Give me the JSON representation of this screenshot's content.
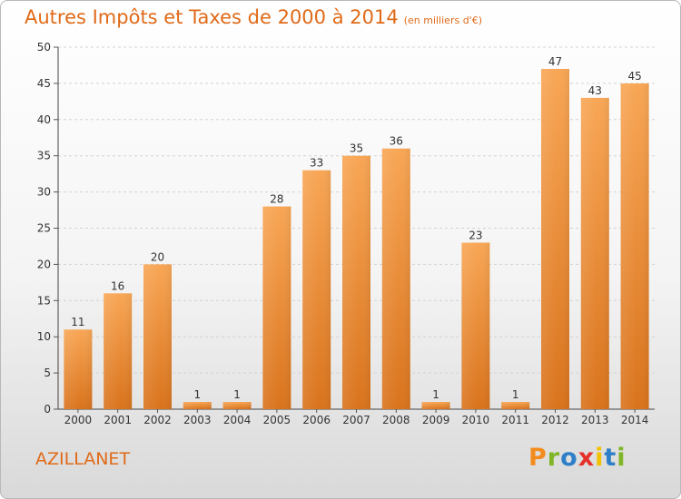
{
  "header": {
    "title": "Autres Impôts et Taxes de 2000 à 2014",
    "unit": "(en milliers d'€)"
  },
  "commune": "AZILLANET",
  "logo": {
    "text": "Proxiti",
    "colors": [
      "#f28c1e",
      "#7fb526",
      "#2e7fc8",
      "#e5312a",
      "#f2c100",
      "#2e7fc8",
      "#7fb526"
    ]
  },
  "chart_data": {
    "type": "bar",
    "title": "Autres Impôts et Taxes de 2000 à 2014",
    "subtitle": "(en milliers d'€)",
    "categories": [
      "2000",
      "2001",
      "2002",
      "2003",
      "2004",
      "2005",
      "2006",
      "2007",
      "2008",
      "2009",
      "2010",
      "2011",
      "2012",
      "2013",
      "2014"
    ],
    "values": [
      11,
      16,
      20,
      1,
      1,
      28,
      33,
      35,
      36,
      1,
      23,
      1,
      47,
      43,
      45
    ],
    "ylim": [
      0,
      50
    ],
    "yticks": [
      0,
      5,
      10,
      15,
      20,
      25,
      30,
      35,
      40,
      45,
      50
    ],
    "grid": true,
    "bar_color": "#f0892a"
  }
}
